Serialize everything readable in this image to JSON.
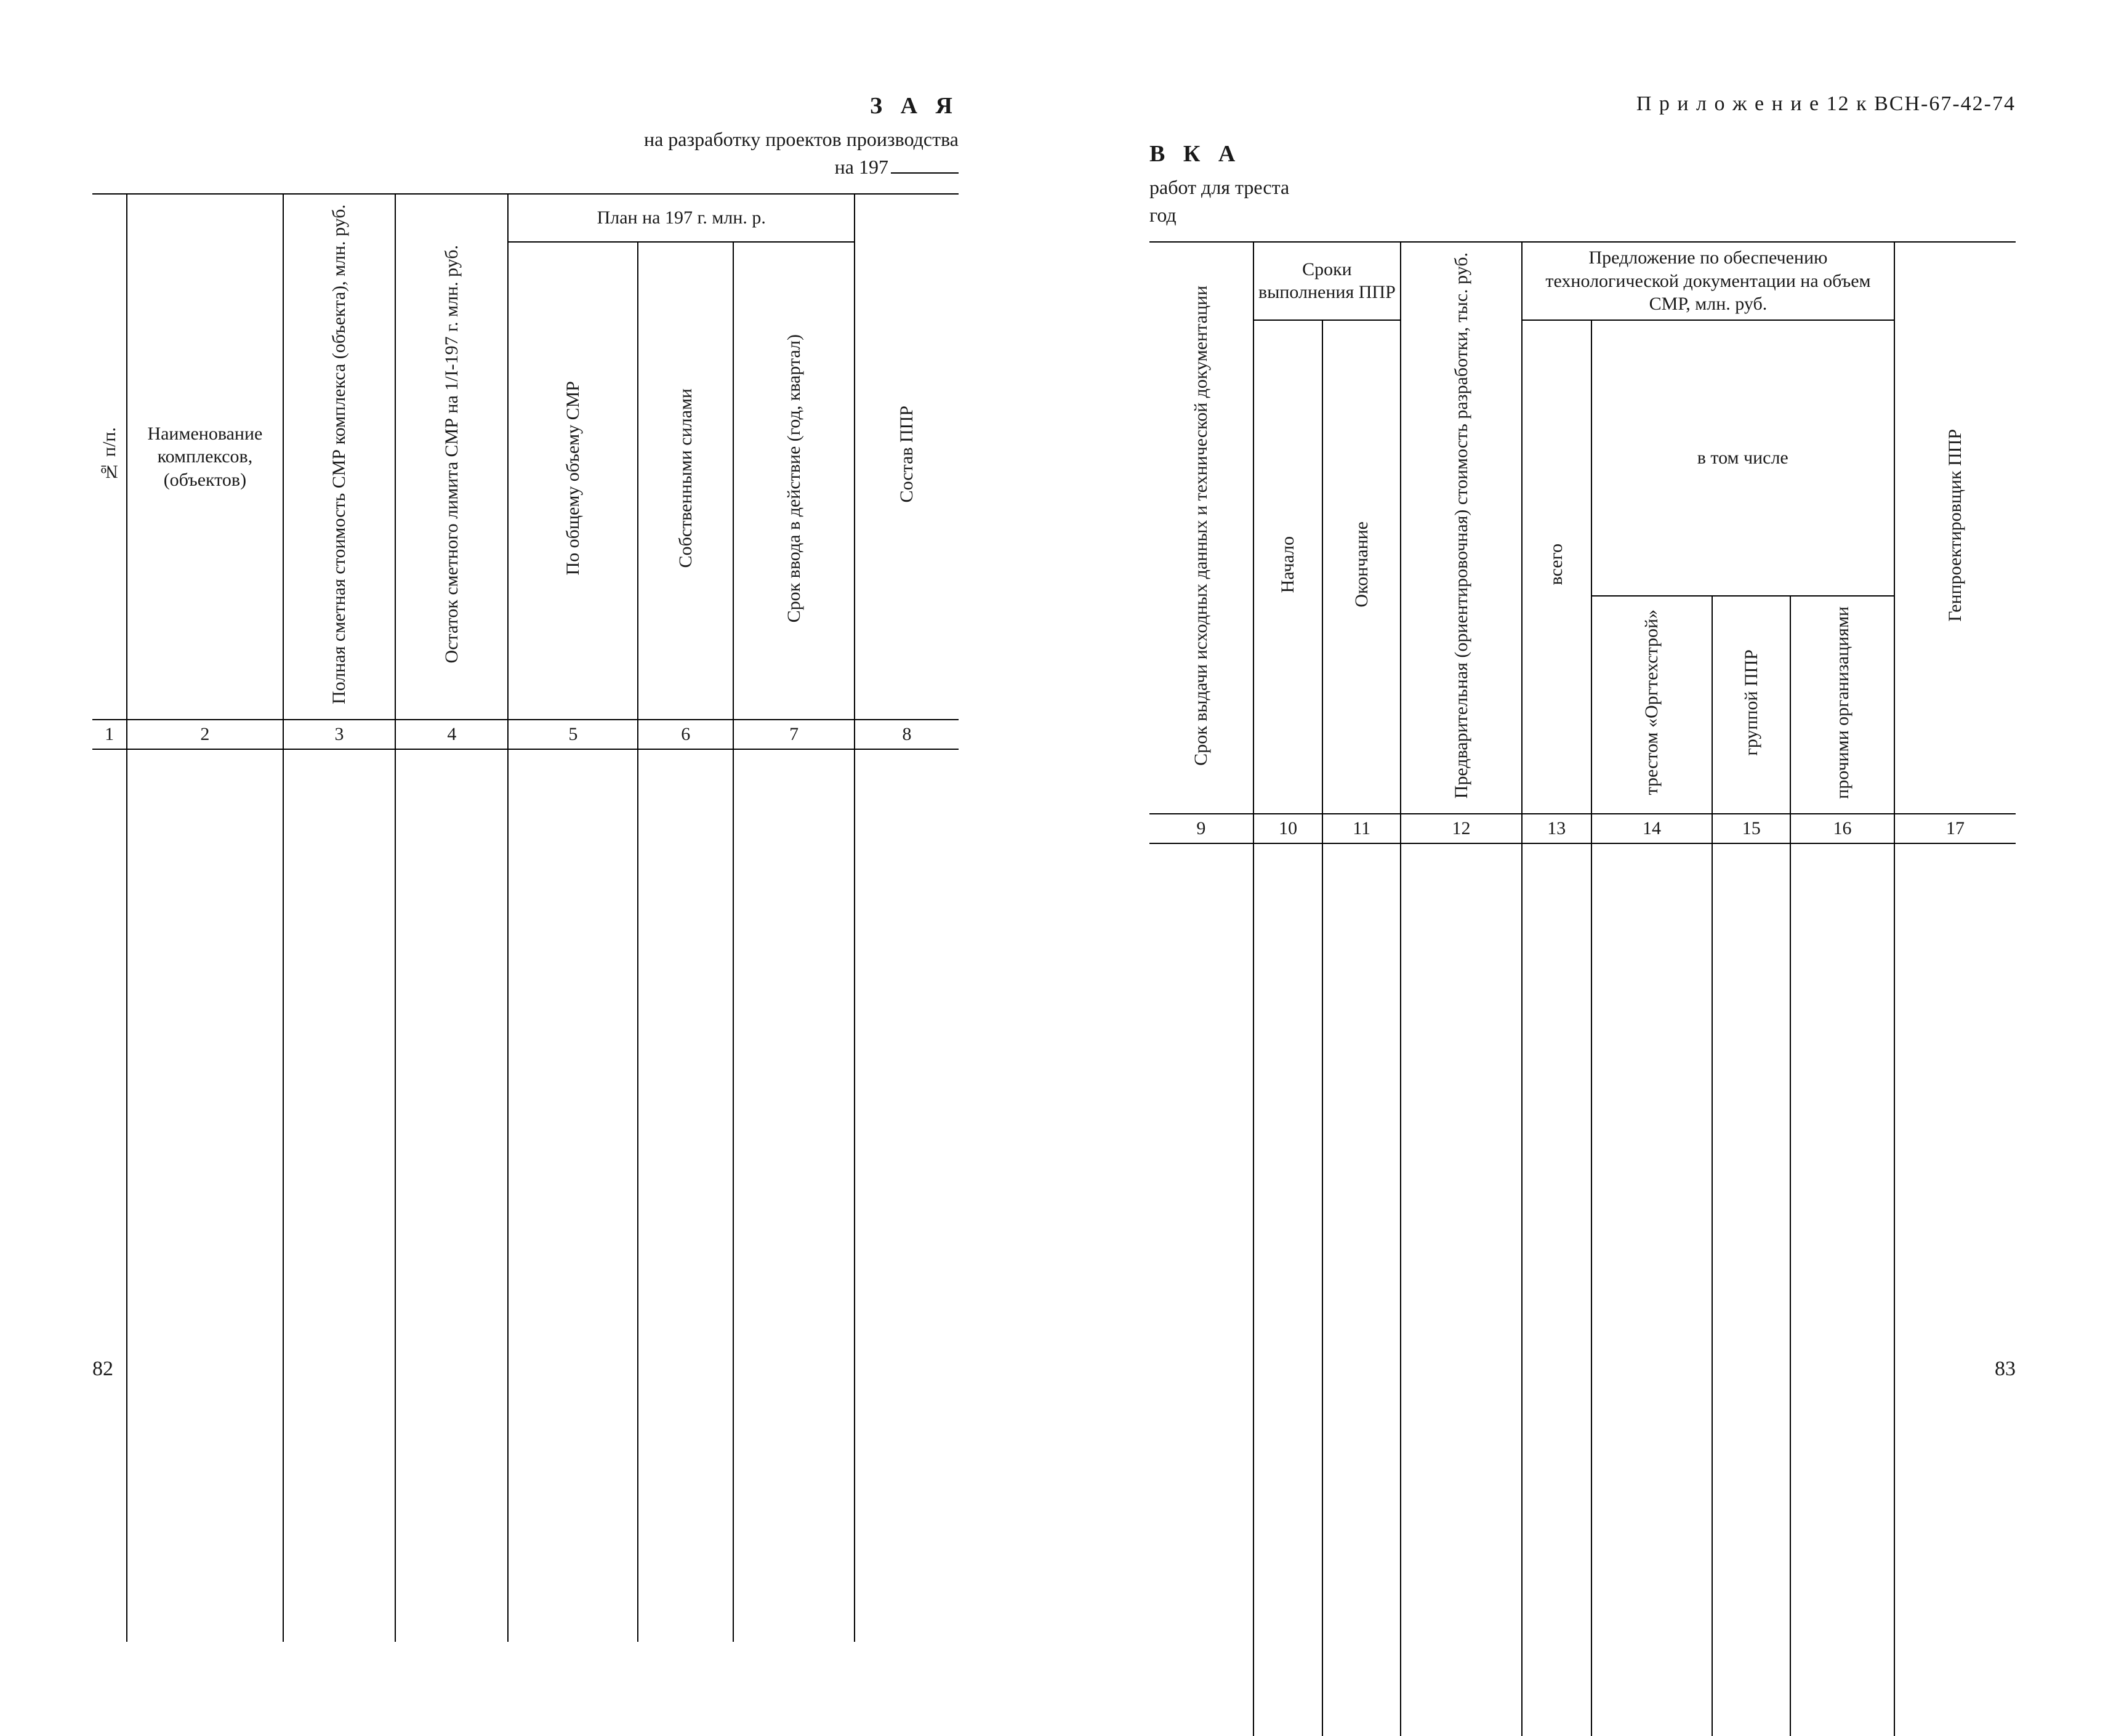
{
  "doc": {
    "appendix_label": "П р и л о ж е н и е 12 к ВСН-67-42-74",
    "page_left": "82",
    "page_right": "83",
    "border_color": "#000000",
    "bg_color": "#ffffff",
    "font_family": "Times New Roman"
  },
  "title": {
    "left_big": "З А Я",
    "left_sub": "на разработку  проектов  производства",
    "left_year_prefix": "на  197",
    "right_big": "В К А",
    "right_sub": "работ  для  треста",
    "right_year": "год"
  },
  "left_table": {
    "group_plan": "План на  197   г.  млн.  р.",
    "cols": [
      {
        "num": "1",
        "label": "№ п/п.",
        "vert": true,
        "width": "4%"
      },
      {
        "num": "2",
        "label": "Наименование комплексов, (объектов)",
        "vert": false,
        "width": "18%"
      },
      {
        "num": "3",
        "label": "Полная сметная стоимость СМР комплекса (объекта), млн. руб.",
        "vert": true,
        "width": "13%"
      },
      {
        "num": "4",
        "label": "Остаток сметного лимита СМР на 1/I-197  г. млн. руб.",
        "vert": true,
        "width": "13%"
      },
      {
        "num": "5",
        "label": "По общему объему СМР",
        "vert": true,
        "width": "15%"
      },
      {
        "num": "6",
        "label": "Собственными силами",
        "vert": true,
        "width": "11%"
      },
      {
        "num": "7",
        "label": "Срок ввода в действие (год, квартал)",
        "vert": true,
        "width": "14%"
      },
      {
        "num": "8",
        "label": "Состав  ППР",
        "vert": true,
        "width": "12%"
      }
    ]
  },
  "right_table": {
    "group_deadlines": "Сроки выполнения ППР",
    "group_proposal": "Предложение по обеспечению технологической документации на объем СМР, млн. руб.",
    "group_including": "в  том  числе",
    "cols": [
      {
        "num": "9",
        "label": "Срок выдачи исходных данных и технической документации",
        "vert": true,
        "width": "12%"
      },
      {
        "num": "10",
        "label": "Начало",
        "vert": true,
        "width": "8%"
      },
      {
        "num": "11",
        "label": "Окончание",
        "vert": true,
        "width": "9%"
      },
      {
        "num": "12",
        "label": "Предварительная (ориентировочная) стоимость разработки, тыс. руб.",
        "vert": true,
        "width": "14%"
      },
      {
        "num": "13",
        "label": "всего",
        "vert": true,
        "width": "8%"
      },
      {
        "num": "14",
        "label": "трестом «Оргтех­строй»",
        "vert": true,
        "width": "14%"
      },
      {
        "num": "15",
        "label": "группой ППР",
        "vert": true,
        "width": "9%"
      },
      {
        "num": "16",
        "label": "прочими органи­зациями",
        "vert": true,
        "width": "12%"
      },
      {
        "num": "17",
        "label": "Генпроектировщик ППР",
        "vert": true,
        "width": "14%"
      }
    ]
  }
}
